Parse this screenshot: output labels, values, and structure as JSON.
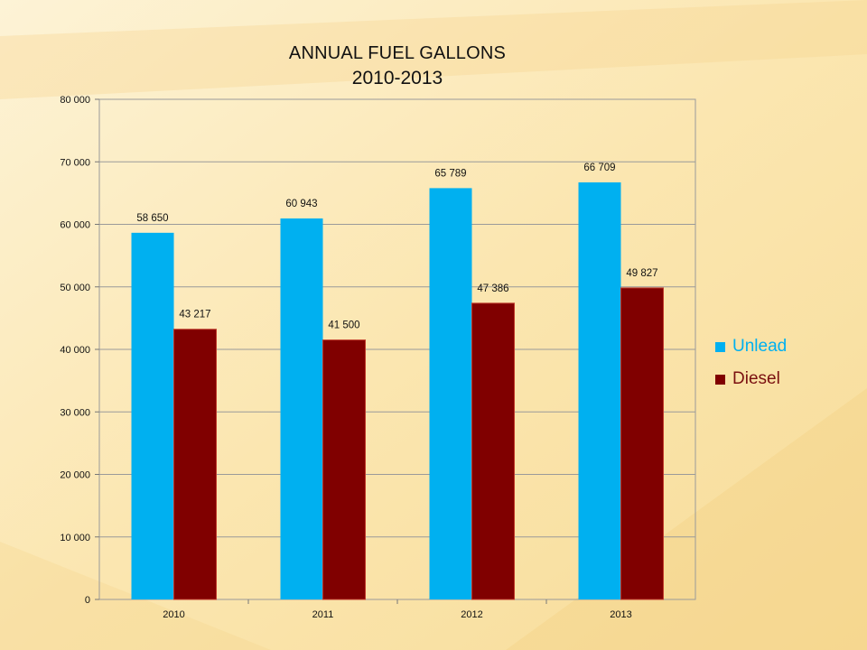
{
  "chart_data": {
    "type": "bar",
    "title": "ANNUAL FUEL GALLONS",
    "subtitle": "2010-2013",
    "categories": [
      "2010",
      "2011",
      "2012",
      "2013"
    ],
    "series": [
      {
        "name": "Unlead",
        "color": "#00b0f0",
        "values": [
          58650,
          60943,
          65789,
          66709
        ],
        "labels": [
          "58 650",
          "60 943",
          "65 789",
          "66 709"
        ]
      },
      {
        "name": "Diesel",
        "color": "#800000",
        "values": [
          43217,
          41500,
          47386,
          49827
        ],
        "labels": [
          "43 217",
          "41 500",
          "47 386",
          "49 827"
        ]
      }
    ],
    "ylim": [
      0,
      80000
    ],
    "yticks": [
      0,
      10000,
      20000,
      30000,
      40000,
      50000,
      60000,
      70000,
      80000
    ],
    "ytick_labels": [
      "0",
      "10 000",
      "20 000",
      "30 000",
      "40 000",
      "50 000",
      "60 000",
      "70 000",
      "80 000"
    ],
    "grid": true,
    "legend": "right",
    "xlabel": "",
    "ylabel": ""
  },
  "legend_colors": {
    "unlead": "#00b0f0",
    "diesel": "#800000"
  },
  "legend": {
    "unlead": "Unlead",
    "diesel": "Diesel"
  }
}
